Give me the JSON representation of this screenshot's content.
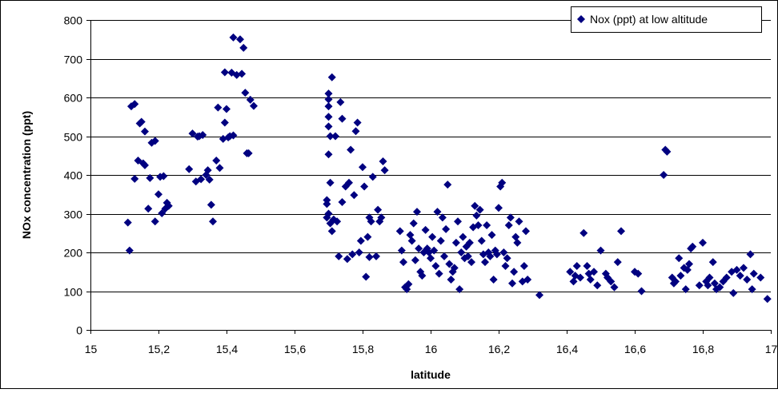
{
  "chart_data": {
    "type": "scatter",
    "title": "",
    "xlabel": "latitude",
    "ylabel": "NOx concentration (ppt)",
    "xlim": [
      15,
      17
    ],
    "ylim": [
      0,
      800
    ],
    "x_ticks": [
      15,
      15.2,
      15.4,
      15.6,
      15.8,
      16,
      16.2,
      16.4,
      16.6,
      16.8,
      17
    ],
    "x_tick_labels": [
      "15",
      "15,2",
      "15,4",
      "15,6",
      "15,8",
      "16",
      "16,2",
      "16,4",
      "16,6",
      "16,8",
      "17"
    ],
    "y_ticks": [
      0,
      100,
      200,
      300,
      400,
      500,
      600,
      700,
      800
    ],
    "y_tick_labels": [
      "0",
      "100",
      "200",
      "300",
      "400",
      "500",
      "600",
      "700",
      "800"
    ],
    "grid": "horizontal major gridlines",
    "legend_position": "top-right",
    "series": [
      {
        "name": "Nox (ppt) at low  altitude",
        "color": "#000080",
        "marker": "diamond",
        "points": [
          [
            15.11,
            277
          ],
          [
            15.115,
            205
          ],
          [
            15.12,
            577
          ],
          [
            15.13,
            583
          ],
          [
            15.13,
            390
          ],
          [
            15.14,
            437
          ],
          [
            15.145,
            533
          ],
          [
            15.15,
            537
          ],
          [
            15.16,
            512
          ],
          [
            15.155,
            430
          ],
          [
            15.16,
            425
          ],
          [
            15.17,
            313
          ],
          [
            15.175,
            392
          ],
          [
            15.18,
            483
          ],
          [
            15.19,
            488
          ],
          [
            15.19,
            280
          ],
          [
            15.2,
            350
          ],
          [
            15.205,
            395
          ],
          [
            15.21,
            301
          ],
          [
            15.215,
            397
          ],
          [
            15.22,
            313
          ],
          [
            15.225,
            328
          ],
          [
            15.23,
            320
          ],
          [
            15.29,
            415
          ],
          [
            15.3,
            507
          ],
          [
            15.31,
            383
          ],
          [
            15.315,
            499
          ],
          [
            15.32,
            500
          ],
          [
            15.325,
            389
          ],
          [
            15.33,
            503
          ],
          [
            15.34,
            400
          ],
          [
            15.345,
            412
          ],
          [
            15.35,
            388
          ],
          [
            15.355,
            323
          ],
          [
            15.36,
            280
          ],
          [
            15.37,
            437
          ],
          [
            15.375,
            574
          ],
          [
            15.38,
            418
          ],
          [
            15.39,
            493
          ],
          [
            15.395,
            665
          ],
          [
            15.395,
            535
          ],
          [
            15.4,
            570
          ],
          [
            15.405,
            497
          ],
          [
            15.41,
            500
          ],
          [
            15.415,
            664
          ],
          [
            15.42,
            755
          ],
          [
            15.42,
            502
          ],
          [
            15.43,
            658
          ],
          [
            15.44,
            750
          ],
          [
            15.445,
            661
          ],
          [
            15.45,
            728
          ],
          [
            15.455,
            612
          ],
          [
            15.46,
            456
          ],
          [
            15.465,
            456
          ],
          [
            15.47,
            594
          ],
          [
            15.48,
            578
          ],
          [
            15.695,
            335
          ],
          [
            15.695,
            290
          ],
          [
            15.7,
            610
          ],
          [
            15.7,
            595
          ],
          [
            15.7,
            577
          ],
          [
            15.7,
            550
          ],
          [
            15.7,
            525
          ],
          [
            15.705,
            500
          ],
          [
            15.7,
            453
          ],
          [
            15.705,
            380
          ],
          [
            15.695,
            325
          ],
          [
            15.7,
            300
          ],
          [
            15.705,
            275
          ],
          [
            15.71,
            652
          ],
          [
            15.71,
            255
          ],
          [
            15.715,
            285
          ],
          [
            15.72,
            500
          ],
          [
            15.725,
            280
          ],
          [
            15.73,
            190
          ],
          [
            15.735,
            588
          ],
          [
            15.74,
            545
          ],
          [
            15.74,
            330
          ],
          [
            15.75,
            370
          ],
          [
            15.755,
            183
          ],
          [
            15.76,
            380
          ],
          [
            15.765,
            465
          ],
          [
            15.77,
            195
          ],
          [
            15.775,
            348
          ],
          [
            15.78,
            513
          ],
          [
            15.785,
            535
          ],
          [
            15.79,
            200
          ],
          [
            15.795,
            230
          ],
          [
            15.8,
            420
          ],
          [
            15.805,
            370
          ],
          [
            15.81,
            137
          ],
          [
            15.815,
            240
          ],
          [
            15.82,
            188
          ],
          [
            15.82,
            290
          ],
          [
            15.825,
            280
          ],
          [
            15.83,
            395
          ],
          [
            15.84,
            190
          ],
          [
            15.845,
            310
          ],
          [
            15.85,
            280
          ],
          [
            15.855,
            290
          ],
          [
            15.86,
            435
          ],
          [
            15.865,
            412
          ],
          [
            15.91,
            255
          ],
          [
            15.915,
            205
          ],
          [
            15.92,
            175
          ],
          [
            15.925,
            110
          ],
          [
            15.93,
            105
          ],
          [
            15.935,
            118
          ],
          [
            15.94,
            245
          ],
          [
            15.945,
            230
          ],
          [
            15.95,
            275
          ],
          [
            15.955,
            180
          ],
          [
            15.96,
            305
          ],
          [
            15.965,
            210
          ],
          [
            15.97,
            150
          ],
          [
            15.975,
            140
          ],
          [
            15.98,
            200
          ],
          [
            15.985,
            258
          ],
          [
            15.99,
            210
          ],
          [
            15.995,
            200
          ],
          [
            16.0,
            185
          ],
          [
            16.005,
            240
          ],
          [
            16.01,
            205
          ],
          [
            16.015,
            165
          ],
          [
            16.02,
            305
          ],
          [
            16.025,
            145
          ],
          [
            16.03,
            230
          ],
          [
            16.035,
            290
          ],
          [
            16.04,
            190
          ],
          [
            16.045,
            260
          ],
          [
            16.05,
            375
          ],
          [
            16.055,
            170
          ],
          [
            16.06,
            130
          ],
          [
            16.065,
            150
          ],
          [
            16.07,
            160
          ],
          [
            16.075,
            225
          ],
          [
            16.08,
            280
          ],
          [
            16.085,
            105
          ],
          [
            16.09,
            200
          ],
          [
            16.095,
            240
          ],
          [
            16.1,
            185
          ],
          [
            16.105,
            215
          ],
          [
            16.11,
            190
          ],
          [
            16.115,
            225
          ],
          [
            16.12,
            175
          ],
          [
            16.125,
            265
          ],
          [
            16.13,
            320
          ],
          [
            16.135,
            295
          ],
          [
            16.14,
            270
          ],
          [
            16.145,
            310
          ],
          [
            16.15,
            230
          ],
          [
            16.155,
            195
          ],
          [
            16.16,
            175
          ],
          [
            16.165,
            270
          ],
          [
            16.17,
            200
          ],
          [
            16.175,
            190
          ],
          [
            16.18,
            245
          ],
          [
            16.185,
            130
          ],
          [
            16.19,
            205
          ],
          [
            16.195,
            195
          ],
          [
            16.2,
            315
          ],
          [
            16.205,
            370
          ],
          [
            16.21,
            380
          ],
          [
            16.215,
            200
          ],
          [
            16.22,
            165
          ],
          [
            16.225,
            185
          ],
          [
            16.23,
            270
          ],
          [
            16.235,
            290
          ],
          [
            16.24,
            120
          ],
          [
            16.245,
            150
          ],
          [
            16.25,
            240
          ],
          [
            16.255,
            225
          ],
          [
            16.26,
            280
          ],
          [
            16.27,
            125
          ],
          [
            16.275,
            165
          ],
          [
            16.28,
            255
          ],
          [
            16.285,
            130
          ],
          [
            16.32,
            90
          ],
          [
            16.41,
            150
          ],
          [
            16.42,
            125
          ],
          [
            16.425,
            140
          ],
          [
            16.43,
            165
          ],
          [
            16.44,
            135
          ],
          [
            16.45,
            250
          ],
          [
            16.46,
            165
          ],
          [
            16.465,
            145
          ],
          [
            16.47,
            130
          ],
          [
            16.48,
            150
          ],
          [
            16.49,
            115
          ],
          [
            16.5,
            205
          ],
          [
            16.515,
            145
          ],
          [
            16.52,
            135
          ],
          [
            16.53,
            125
          ],
          [
            16.54,
            110
          ],
          [
            16.55,
            175
          ],
          [
            16.56,
            255
          ],
          [
            16.6,
            150
          ],
          [
            16.61,
            145
          ],
          [
            16.62,
            100
          ],
          [
            16.685,
            400
          ],
          [
            16.69,
            465
          ],
          [
            16.695,
            460
          ],
          [
            16.71,
            135
          ],
          [
            16.715,
            120
          ],
          [
            16.72,
            125
          ],
          [
            16.73,
            185
          ],
          [
            16.735,
            140
          ],
          [
            16.745,
            160
          ],
          [
            16.75,
            105
          ],
          [
            16.755,
            155
          ],
          [
            16.76,
            170
          ],
          [
            16.765,
            210
          ],
          [
            16.77,
            215
          ],
          [
            16.79,
            115
          ],
          [
            16.8,
            225
          ],
          [
            16.81,
            125
          ],
          [
            16.815,
            115
          ],
          [
            16.82,
            135
          ],
          [
            16.83,
            175
          ],
          [
            16.835,
            120
          ],
          [
            16.84,
            105
          ],
          [
            16.85,
            110
          ],
          [
            16.86,
            125
          ],
          [
            16.87,
            135
          ],
          [
            16.885,
            150
          ],
          [
            16.89,
            95
          ],
          [
            16.9,
            155
          ],
          [
            16.91,
            140
          ],
          [
            16.92,
            160
          ],
          [
            16.93,
            130
          ],
          [
            16.94,
            195
          ],
          [
            16.945,
            105
          ],
          [
            16.95,
            145
          ],
          [
            16.97,
            135
          ],
          [
            16.99,
            80
          ]
        ]
      }
    ]
  }
}
